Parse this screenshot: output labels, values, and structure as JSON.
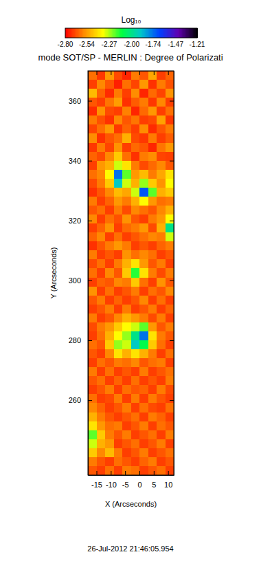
{
  "chart_data": {
    "type": "heatmap",
    "title": "mode SOT/SP - MERLIN : Degree of Polarizati",
    "x_label": "X (Arcseconds)",
    "y_label": "Y (Arcseconds)",
    "date": "26-Jul-2012 21:46:05.954",
    "xlim": [
      -18,
      12
    ],
    "ylim": [
      235,
      370
    ],
    "xticks": [
      -15,
      -10,
      -5,
      0,
      5,
      10
    ],
    "yticks": [
      260,
      280,
      300,
      320,
      340,
      360
    ],
    "colorbar_title": "Log₁₀",
    "colorbar_range": [
      -2.8,
      -1.21
    ],
    "colorbar_ticks": [
      {
        "value": -2.8,
        "label": "-2.80"
      },
      -2.54,
      -2.27,
      {
        "value": -2,
        "label": "-2.00"
      },
      -1.74,
      -1.47,
      -1.21
    ],
    "x": [
      -16.5,
      -13.5,
      -10.5,
      -7.5,
      -4.5,
      -1.5,
      1.5,
      4.5,
      7.5,
      10.5
    ],
    "y": [
      368.5,
      365.5,
      362.5,
      359.5,
      356.5,
      353.5,
      350.5,
      347.5,
      344.5,
      341.5,
      338.5,
      335.5,
      332.5,
      329.5,
      326.5,
      323.5,
      320.5,
      317.5,
      314.5,
      311.5,
      308.5,
      305.5,
      302.5,
      299.5,
      296.5,
      293.5,
      290.5,
      287.5,
      284.5,
      281.5,
      278.5,
      275.5,
      272.5,
      269.5,
      266.5,
      263.5,
      260.5,
      257.5,
      254.5,
      251.5,
      248.5,
      245.5,
      242.5,
      239.5,
      236.5
    ],
    "z": [
      [
        -2.62,
        -2.71,
        -2.55,
        -2.68,
        -2.74,
        -2.6,
        -2.66,
        -2.52,
        -2.7,
        -2.64
      ],
      [
        -2.7,
        -2.58,
        -2.66,
        -2.75,
        -2.62,
        -2.69,
        -2.55,
        -2.72,
        -2.6,
        -2.67
      ],
      [
        -2.48,
        -2.64,
        -2.73,
        -2.6,
        -2.7,
        -2.57,
        -2.74,
        -2.63,
        -2.69,
        -2.56
      ],
      [
        -2.66,
        -2.7,
        -2.61,
        -2.54,
        -2.72,
        -2.65,
        -2.6,
        -2.71,
        -2.58,
        -2.7
      ],
      [
        -2.73,
        -2.56,
        -2.68,
        -2.7,
        -2.59,
        -2.74,
        -2.63,
        -2.55,
        -2.7,
        -2.62
      ],
      [
        -2.6,
        -2.67,
        -2.72,
        -2.58,
        -2.66,
        -2.61,
        -2.7,
        -2.68,
        -2.53,
        -2.71
      ],
      [
        -2.69,
        -2.62,
        -2.55,
        -2.71,
        -2.64,
        -2.7,
        -2.57,
        -2.73,
        -2.66,
        -2.6
      ],
      [
        -2.57,
        -2.72,
        -2.66,
        -2.62,
        -2.5,
        -2.68,
        -2.71,
        -2.6,
        -2.7,
        -2.65
      ],
      [
        -2.71,
        -2.6,
        -2.69,
        -2.56,
        -2.7,
        -2.63,
        -2.66,
        -2.74,
        -2.61,
        -2.55
      ],
      [
        -2.64,
        -2.68,
        -2.58,
        -2.45,
        -2.62,
        -2.72,
        -2.6,
        -2.57,
        -2.69,
        -2.7
      ],
      [
        -2.7,
        -2.55,
        -2.5,
        -2.3,
        -2.4,
        -2.6,
        -2.68,
        -2.63,
        -2.58,
        -2.66
      ],
      [
        -2.62,
        -2.58,
        -2.35,
        -1.75,
        -2.2,
        -2.55,
        -2.48,
        -2.6,
        -2.52,
        -2.4
      ],
      [
        -2.68,
        -2.6,
        -2.45,
        -1.9,
        -2.3,
        -2.5,
        -2.25,
        -2.45,
        -2.56,
        -2.35
      ],
      [
        -2.72,
        -2.66,
        -2.58,
        -2.48,
        -2.52,
        -2.3,
        -1.7,
        -2.2,
        -2.5,
        -2.45
      ],
      [
        -2.6,
        -2.7,
        -2.64,
        -2.55,
        -2.6,
        -2.5,
        -2.35,
        -2.55,
        -2.62,
        -2.6
      ],
      [
        -2.66,
        -2.62,
        -2.7,
        -2.6,
        -2.68,
        -2.58,
        -2.62,
        -2.66,
        -2.58,
        -2.5
      ],
      [
        -2.58,
        -2.7,
        -2.62,
        -2.67,
        -2.56,
        -2.66,
        -2.7,
        -2.6,
        -2.55,
        -2.35
      ],
      [
        -2.7,
        -2.64,
        -2.56,
        -2.7,
        -2.63,
        -2.6,
        -2.55,
        -2.68,
        -2.5,
        -2.0
      ],
      [
        -2.64,
        -2.58,
        -2.7,
        -2.62,
        -2.7,
        -2.66,
        -2.62,
        -2.58,
        -2.6,
        -2.3
      ],
      [
        -2.72,
        -2.66,
        -2.6,
        -2.55,
        -2.6,
        -2.7,
        -2.66,
        -2.7,
        -2.64,
        -2.6
      ],
      [
        -2.6,
        -2.7,
        -2.66,
        -2.7,
        -2.56,
        -2.62,
        -2.58,
        -2.62,
        -2.7,
        -2.66
      ],
      [
        -2.68,
        -2.62,
        -2.7,
        -2.6,
        -2.5,
        -2.4,
        -2.55,
        -2.66,
        -2.6,
        -2.7
      ],
      [
        -2.62,
        -2.7,
        -2.58,
        -2.66,
        -2.45,
        -2.15,
        -2.4,
        -2.6,
        -2.68,
        -2.6
      ],
      [
        -2.7,
        -2.64,
        -2.66,
        -2.58,
        -2.6,
        -2.45,
        -2.62,
        -2.7,
        -2.56,
        -2.66
      ],
      [
        -2.56,
        -2.7,
        -2.62,
        -2.7,
        -2.66,
        -2.6,
        -2.7,
        -2.62,
        -2.66,
        -2.58
      ],
      [
        -2.66,
        -2.6,
        -2.7,
        -2.64,
        -2.7,
        -2.66,
        -2.58,
        -2.7,
        -2.62,
        -2.7
      ],
      [
        -2.7,
        -2.66,
        -2.6,
        -2.7,
        -2.6,
        -2.7,
        -2.66,
        -2.6,
        -2.7,
        -2.64
      ],
      [
        -2.6,
        -2.7,
        -2.66,
        -2.58,
        -2.5,
        -2.55,
        -2.6,
        -2.68,
        -2.6,
        -2.7
      ],
      [
        -2.68,
        -2.6,
        -2.55,
        -2.45,
        -2.35,
        -2.3,
        -2.2,
        -2.55,
        -2.66,
        -2.6
      ],
      [
        -2.7,
        -2.62,
        -2.5,
        -2.35,
        -2.25,
        -2.0,
        -1.75,
        -2.4,
        -2.6,
        -2.66
      ],
      [
        -2.62,
        -2.66,
        -2.45,
        -2.25,
        -2.3,
        -1.9,
        -2.1,
        -2.45,
        -2.62,
        -2.7
      ],
      [
        -2.66,
        -2.7,
        -2.58,
        -2.4,
        -2.5,
        -2.4,
        -2.5,
        -2.6,
        -2.7,
        -2.62
      ],
      [
        -2.7,
        -2.62,
        -2.66,
        -2.6,
        -2.62,
        -2.58,
        -2.66,
        -2.62,
        -2.6,
        -2.7
      ],
      [
        -2.6,
        -2.7,
        -2.62,
        -2.7,
        -2.66,
        -2.7,
        -2.6,
        -2.7,
        -2.66,
        -2.62
      ],
      [
        -2.66,
        -2.62,
        -2.7,
        -2.64,
        -2.7,
        -2.62,
        -2.7,
        -2.66,
        -2.7,
        -2.6
      ],
      [
        -2.7,
        -2.66,
        -2.6,
        -2.7,
        -2.62,
        -2.66,
        -2.64,
        -2.7,
        -2.6,
        -2.68
      ],
      [
        -2.62,
        -2.7,
        -2.68,
        -2.6,
        -2.7,
        -2.6,
        -2.7,
        -2.6,
        -2.66,
        -2.7
      ],
      [
        -2.58,
        -2.64,
        -2.7,
        -2.66,
        -2.6,
        -2.7,
        -2.62,
        -2.68,
        -2.7,
        -2.62
      ],
      [
        -2.5,
        -2.6,
        -2.66,
        -2.7,
        -2.66,
        -2.62,
        -2.7,
        -2.6,
        -2.64,
        -2.7
      ],
      [
        -2.4,
        -2.55,
        -2.62,
        -2.6,
        -2.7,
        -2.66,
        -2.6,
        -2.7,
        -2.62,
        -2.66
      ],
      [
        -2.2,
        -2.45,
        -2.6,
        -2.66,
        -2.6,
        -2.7,
        -2.66,
        -2.62,
        -2.7,
        -2.6
      ],
      [
        -2.3,
        -2.5,
        -2.55,
        -2.7,
        -2.66,
        -2.62,
        -2.7,
        -2.66,
        -2.6,
        -2.7
      ],
      [
        -2.45,
        -2.58,
        -2.48,
        -2.6,
        -2.7,
        -2.66,
        -2.6,
        -2.7,
        -2.66,
        -2.62
      ],
      [
        -2.6,
        -2.66,
        -2.7,
        -2.62,
        -2.66,
        -2.7,
        -2.64,
        -2.6,
        -2.7,
        -2.66
      ],
      [
        -2.66,
        -2.7,
        -2.62,
        -2.7,
        -2.6,
        -2.62,
        -2.7,
        -2.66,
        -2.62,
        -2.7
      ]
    ]
  }
}
